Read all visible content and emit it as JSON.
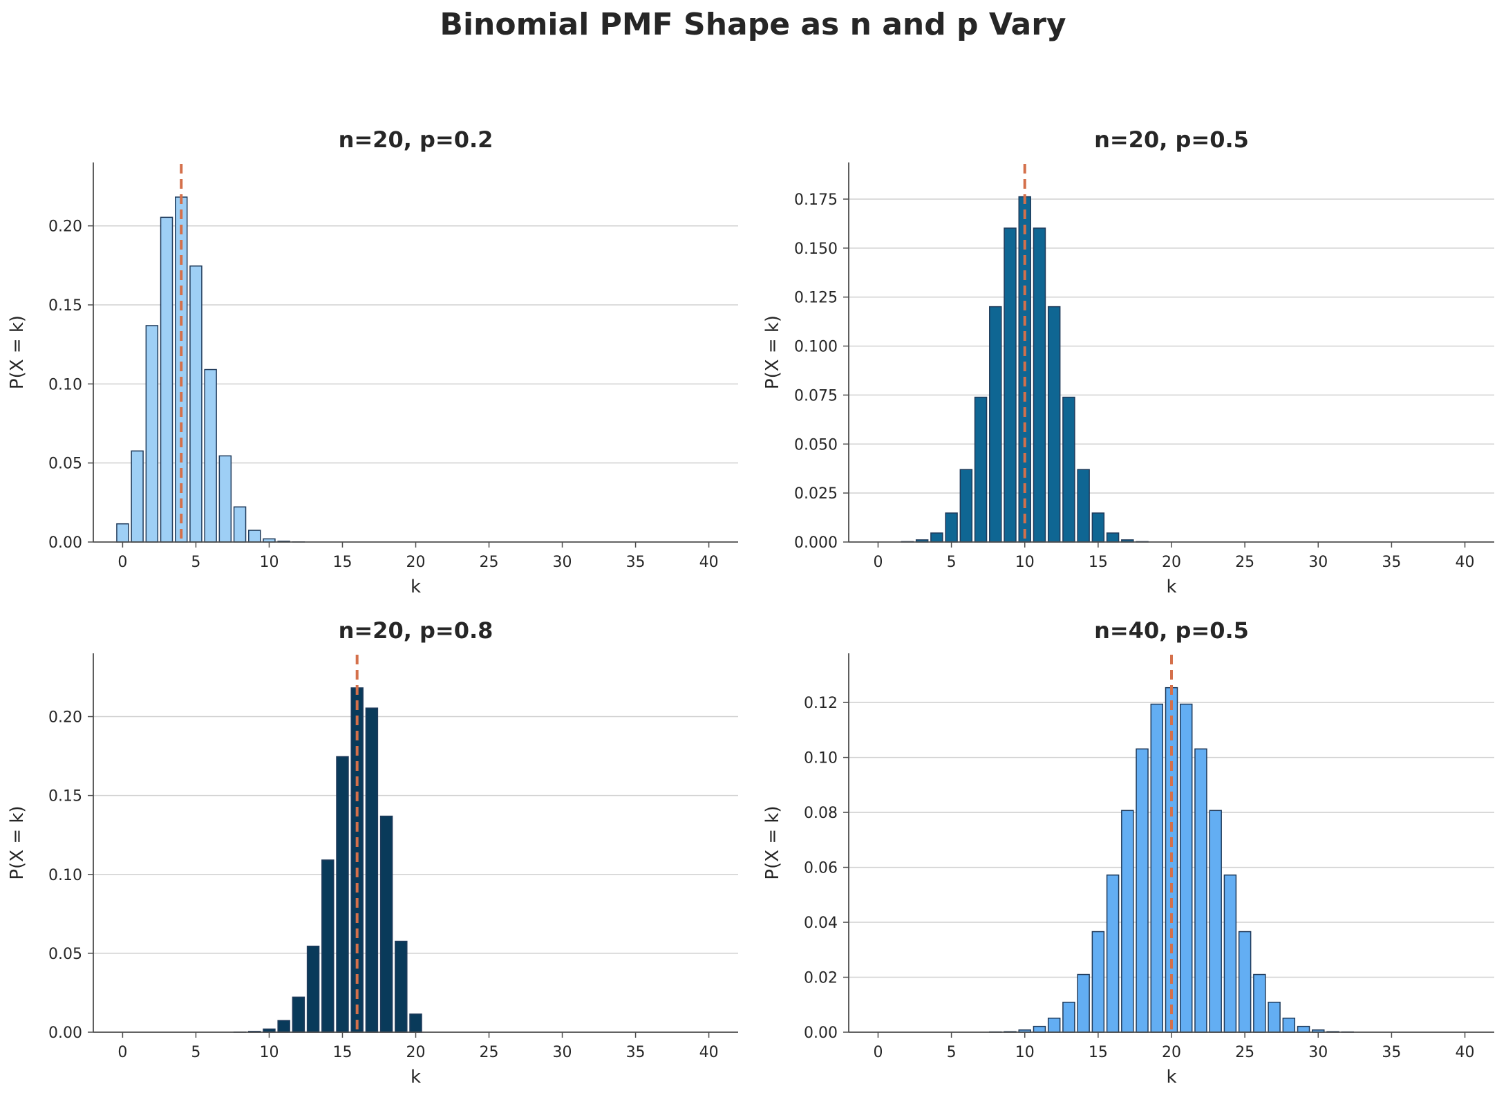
{
  "title": "Binomial PMF Shape as n and p Vary",
  "colors": {
    "axis": "#4d4d4d",
    "grid": "#d0d0d0",
    "text": "#262626",
    "bar_edge": "#1f3a5a",
    "mean_line": "#d4704b"
  },
  "chart_data": [
    {
      "type": "bar",
      "title": "n=20, p=0.2",
      "xlabel": "k",
      "ylabel": "P(X = k)",
      "xlim": [
        -2,
        42
      ],
      "ylim": [
        0,
        0.2401
      ],
      "xticks": [
        "0",
        "5",
        "10",
        "15",
        "20",
        "25",
        "30",
        "35",
        "40"
      ],
      "yticks": [
        "0.00",
        "0.05",
        "0.10",
        "0.15",
        "0.20"
      ],
      "grid": "y",
      "bar_color": "#9ecff5",
      "mean_line": 4,
      "x": [
        0,
        1,
        2,
        3,
        4,
        5,
        6,
        7,
        8,
        9,
        10,
        11,
        12,
        13,
        14,
        15,
        16,
        17,
        18,
        19,
        20
      ],
      "values": [
        0.0115,
        0.0576,
        0.1369,
        0.2054,
        0.2182,
        0.1746,
        0.1091,
        0.0545,
        0.0222,
        0.0074,
        0.002,
        0.0005,
        0.0001,
        0,
        0,
        0,
        0,
        0,
        0,
        0,
        0
      ]
    },
    {
      "type": "bar",
      "title": "n=20, p=0.5",
      "xlabel": "k",
      "ylabel": "P(X = k)",
      "xlim": [
        -2,
        42
      ],
      "ylim": [
        0,
        0.1937
      ],
      "xticks": [
        "0",
        "5",
        "10",
        "15",
        "20",
        "25",
        "30",
        "35",
        "40"
      ],
      "yticks": [
        "0.000",
        "0.025",
        "0.050",
        "0.075",
        "0.100",
        "0.125",
        "0.150",
        "0.175"
      ],
      "grid": "y",
      "bar_color": "#0f6693",
      "mean_line": 10,
      "x": [
        0,
        1,
        2,
        3,
        4,
        5,
        6,
        7,
        8,
        9,
        10,
        11,
        12,
        13,
        14,
        15,
        16,
        17,
        18,
        19,
        20
      ],
      "values": [
        0,
        0,
        0.0002,
        0.0011,
        0.0046,
        0.0148,
        0.037,
        0.0739,
        0.1201,
        0.1602,
        0.1762,
        0.1602,
        0.1201,
        0.0739,
        0.037,
        0.0148,
        0.0046,
        0.0011,
        0.0002,
        0,
        0
      ]
    },
    {
      "type": "bar",
      "title": "n=20, p=0.8",
      "xlabel": "k",
      "ylabel": "P(X = k)",
      "xlim": [
        -2,
        42
      ],
      "ylim": [
        0,
        0.2401
      ],
      "xticks": [
        "0",
        "5",
        "10",
        "15",
        "20",
        "25",
        "30",
        "35",
        "40"
      ],
      "yticks": [
        "0.00",
        "0.05",
        "0.10",
        "0.15",
        "0.20"
      ],
      "grid": "y",
      "bar_color": "#093a5a",
      "mean_line": 16,
      "x": [
        0,
        1,
        2,
        3,
        4,
        5,
        6,
        7,
        8,
        9,
        10,
        11,
        12,
        13,
        14,
        15,
        16,
        17,
        18,
        19,
        20
      ],
      "values": [
        0,
        0,
        0,
        0,
        0,
        0,
        0,
        0,
        0.0001,
        0.0005,
        0.002,
        0.0074,
        0.0222,
        0.0545,
        0.1091,
        0.1746,
        0.2182,
        0.2054,
        0.1369,
        0.0576,
        0.0115
      ]
    },
    {
      "type": "bar",
      "title": "n=40, p=0.5",
      "xlabel": "k",
      "ylabel": "P(X = k)",
      "xlim": [
        -2,
        42
      ],
      "ylim": [
        0,
        0.1379
      ],
      "xticks": [
        "0",
        "5",
        "10",
        "15",
        "20",
        "25",
        "30",
        "35",
        "40"
      ],
      "yticks": [
        "0.00",
        "0.02",
        "0.04",
        "0.06",
        "0.08",
        "0.10",
        "0.12"
      ],
      "grid": "y",
      "bar_color": "#63aef3",
      "mean_line": 20,
      "x": [
        0,
        1,
        2,
        3,
        4,
        5,
        6,
        7,
        8,
        9,
        10,
        11,
        12,
        13,
        14,
        15,
        16,
        17,
        18,
        19,
        20,
        21,
        22,
        23,
        24,
        25,
        26,
        27,
        28,
        29,
        30,
        31,
        32,
        33,
        34,
        35,
        36,
        37,
        38,
        39,
        40
      ],
      "values": [
        0,
        0,
        0,
        0,
        0,
        0,
        0,
        0,
        0.0001,
        0.0002,
        0.0008,
        0.0021,
        0.0051,
        0.0109,
        0.021,
        0.0366,
        0.0572,
        0.0807,
        0.1031,
        0.1194,
        0.1254,
        0.1194,
        0.1031,
        0.0807,
        0.0572,
        0.0366,
        0.021,
        0.0109,
        0.0051,
        0.0021,
        0.0008,
        0.0002,
        0.0001,
        0,
        0,
        0,
        0,
        0,
        0,
        0,
        0
      ]
    }
  ]
}
